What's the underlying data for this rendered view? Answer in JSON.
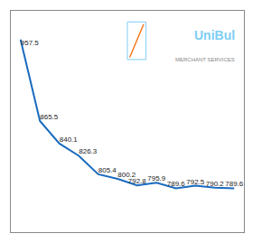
{
  "chart_data": {
    "type": "line",
    "x": [
      0,
      1,
      2,
      3,
      4,
      5,
      6,
      7,
      8,
      9,
      10,
      11
    ],
    "values": [
      957.5,
      865.5,
      840.1,
      826.3,
      805.4,
      800.2,
      792.8,
      795.9,
      789.6,
      792.5,
      790.2,
      789.6
    ],
    "color": "#1a6bbf",
    "xlim": [
      -0.5,
      11.5
    ],
    "ylim": [
      740,
      990
    ],
    "xticks": [],
    "yticks": [],
    "grid": false,
    "data_labels": true,
    "tick_labels": false,
    "annotations": [
      "UniBul",
      "MERCHANT SERVICES"
    ]
  }
}
